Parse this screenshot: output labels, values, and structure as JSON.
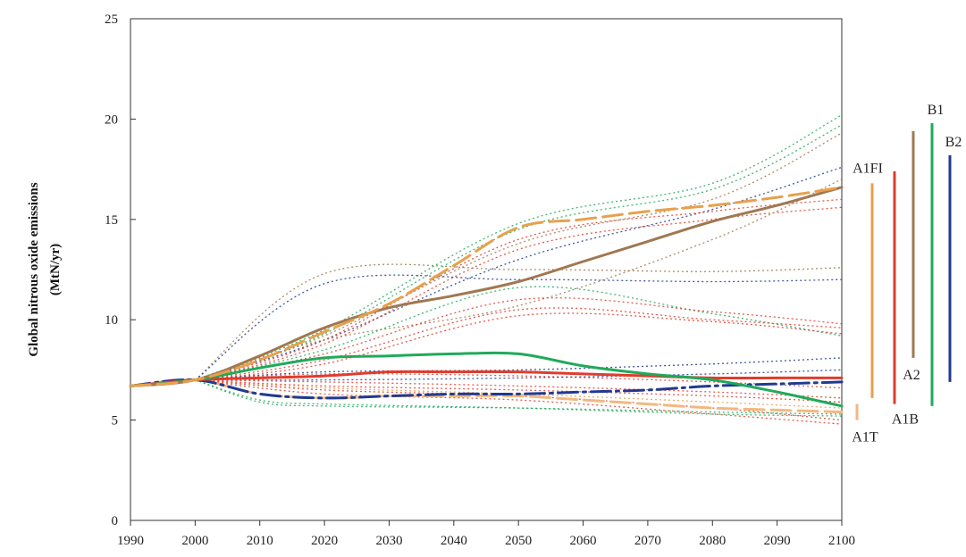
{
  "chart_data": {
    "type": "line",
    "ylabel_line1": "Global nitrous oxide emissions",
    "ylabel_line2": "(MtN/yr)",
    "xlim": [
      1990,
      2100
    ],
    "ylim": [
      0,
      25
    ],
    "x_ticks": [
      "1990",
      "2000",
      "2010",
      "2020",
      "2030",
      "2040",
      "2050",
      "2060",
      "2070",
      "2080",
      "2090",
      "2100"
    ],
    "y_ticks": [
      "0",
      "5",
      "10",
      "15",
      "20",
      "25"
    ],
    "grid": false,
    "colors": {
      "A1FI": "#e8a04c",
      "A1B": "#e03c2c",
      "A1T": "#f2b880",
      "A2": "#a07850",
      "B1": "#1faa5a",
      "B2": "#1f3a93"
    },
    "series": [
      {
        "name": "A1FI",
        "style": "dashed-bold",
        "x": [
          1990,
          2000,
          2010,
          2020,
          2030,
          2040,
          2050,
          2060,
          2070,
          2080,
          2090,
          2100
        ],
        "values": [
          6.7,
          7.0,
          8.0,
          9.4,
          10.8,
          12.7,
          14.6,
          15.0,
          15.4,
          15.7,
          16.1,
          16.6
        ]
      },
      {
        "name": "A1B",
        "style": "solid-bold",
        "x": [
          1990,
          2000,
          2010,
          2020,
          2030,
          2040,
          2050,
          2060,
          2070,
          2080,
          2090,
          2100
        ],
        "values": [
          6.7,
          7.0,
          7.1,
          7.2,
          7.4,
          7.4,
          7.4,
          7.3,
          7.2,
          7.1,
          7.1,
          7.1
        ]
      },
      {
        "name": "A1T",
        "style": "dashed-bold",
        "x": [
          1990,
          2000,
          2010,
          2020,
          2030,
          2040,
          2050,
          2060,
          2070,
          2080,
          2090,
          2100
        ],
        "values": [
          6.7,
          7.0,
          6.3,
          6.1,
          6.2,
          6.2,
          6.2,
          6.0,
          5.8,
          5.6,
          5.5,
          5.4
        ]
      },
      {
        "name": "A2",
        "style": "solid-bold",
        "x": [
          1990,
          2000,
          2010,
          2020,
          2030,
          2040,
          2050,
          2060,
          2070,
          2080,
          2090,
          2100
        ],
        "values": [
          6.7,
          7.0,
          8.2,
          9.6,
          10.6,
          11.2,
          11.9,
          12.9,
          13.9,
          14.9,
          15.7,
          16.6
        ]
      },
      {
        "name": "B1",
        "style": "solid-bold",
        "x": [
          1990,
          2000,
          2010,
          2020,
          2030,
          2040,
          2050,
          2060,
          2070,
          2080,
          2090,
          2100
        ],
        "values": [
          6.7,
          7.0,
          7.6,
          8.1,
          8.2,
          8.3,
          8.3,
          7.7,
          7.3,
          7.0,
          6.4,
          5.7
        ]
      },
      {
        "name": "B2",
        "style": "dash-dot-bold",
        "x": [
          1990,
          2000,
          2010,
          2020,
          2030,
          2040,
          2050,
          2060,
          2070,
          2080,
          2090,
          2100
        ],
        "values": [
          6.7,
          7.0,
          6.3,
          6.1,
          6.2,
          6.3,
          6.3,
          6.4,
          6.5,
          6.7,
          6.8,
          6.9
        ]
      }
    ],
    "other_scenarios": [
      {
        "color": "#1faa5a",
        "x": [
          2000,
          2020,
          2050,
          2080,
          2100
        ],
        "values": [
          7.0,
          9.5,
          14.8,
          16.8,
          20.2
        ]
      },
      {
        "color": "#1faa5a",
        "x": [
          2000,
          2020,
          2050,
          2080,
          2100
        ],
        "values": [
          7.0,
          9.3,
          14.5,
          16.5,
          19.7
        ]
      },
      {
        "color": "#a07850",
        "x": [
          2000,
          2020,
          2050,
          2080,
          2100
        ],
        "values": [
          7.0,
          9.2,
          13.8,
          16.0,
          19.3
        ]
      },
      {
        "color": "#1f3a93",
        "x": [
          2000,
          2020,
          2050,
          2080,
          2100
        ],
        "values": [
          7.0,
          9.0,
          13.0,
          15.5,
          17.6
        ]
      },
      {
        "color": "#e03c2c",
        "x": [
          2000,
          2020,
          2050,
          2080,
          2100
        ],
        "values": [
          7.0,
          9.0,
          14.0,
          15.4,
          16.0
        ]
      },
      {
        "color": "#e03c2c",
        "x": [
          2000,
          2020,
          2050,
          2080,
          2100
        ],
        "values": [
          7.0,
          8.8,
          13.5,
          15.0,
          15.6
        ]
      },
      {
        "color": "#a07850",
        "x": [
          2000,
          2020,
          2050,
          2080,
          2100
        ],
        "values": [
          7.0,
          12.3,
          12.5,
          12.4,
          12.6
        ]
      },
      {
        "color": "#1f3a93",
        "x": [
          2000,
          2020,
          2050,
          2080,
          2100
        ],
        "values": [
          7.0,
          11.8,
          12.0,
          11.9,
          12.0
        ]
      },
      {
        "color": "#a07850",
        "x": [
          2000,
          2020,
          2050,
          2080,
          2100
        ],
        "values": [
          7.0,
          9.0,
          10.7,
          14.0,
          17.0
        ]
      },
      {
        "color": "#1faa5a",
        "x": [
          2000,
          2020,
          2050,
          2080,
          2100
        ],
        "values": [
          7.0,
          8.5,
          11.6,
          10.3,
          9.2
        ]
      },
      {
        "color": "#e03c2c",
        "x": [
          2000,
          2020,
          2050,
          2080,
          2100
        ],
        "values": [
          7.0,
          8.0,
          10.5,
          10.0,
          9.6
        ]
      },
      {
        "color": "#e03c2c",
        "x": [
          2000,
          2020,
          2050,
          2080,
          2100
        ],
        "values": [
          7.0,
          8.3,
          11.0,
          10.4,
          9.8
        ]
      },
      {
        "color": "#e03c2c",
        "x": [
          2000,
          2020,
          2050,
          2080,
          2100
        ],
        "values": [
          7.0,
          7.8,
          10.2,
          9.9,
          9.3
        ]
      },
      {
        "color": "#1f3a93",
        "x": [
          2000,
          2020,
          2050,
          2080,
          2100
        ],
        "values": [
          7.0,
          7.4,
          7.5,
          7.8,
          8.1
        ]
      },
      {
        "color": "#e03c2c",
        "x": [
          2000,
          2020,
          2050,
          2080,
          2100
        ],
        "values": [
          7.0,
          7.3,
          7.2,
          6.9,
          6.6
        ]
      },
      {
        "color": "#1f3a93",
        "x": [
          2000,
          2020,
          2050,
          2080,
          2100
        ],
        "values": [
          7.0,
          7.0,
          7.1,
          7.3,
          7.5
        ]
      },
      {
        "color": "#e03c2c",
        "x": [
          2000,
          2020,
          2050,
          2080,
          2100
        ],
        "values": [
          7.0,
          6.9,
          6.7,
          6.4,
          6.1
        ]
      },
      {
        "color": "#e8a04c",
        "x": [
          2000,
          2020,
          2050,
          2080,
          2100
        ],
        "values": [
          7.0,
          6.6,
          6.3,
          5.9,
          5.6
        ]
      },
      {
        "color": "#e03c2c",
        "x": [
          2000,
          2020,
          2050,
          2080,
          2100
        ],
        "values": [
          7.0,
          6.5,
          6.2,
          5.6,
          5.0
        ]
      },
      {
        "color": "#1faa5a",
        "x": [
          2000,
          2010,
          2020,
          2050,
          2080,
          2100
        ],
        "values": [
          7.0,
          5.9,
          5.7,
          5.6,
          5.4,
          5.3
        ]
      },
      {
        "color": "#1faa5a",
        "x": [
          2000,
          2010,
          2020,
          2050,
          2080,
          2100
        ],
        "values": [
          7.0,
          6.0,
          5.8,
          5.6,
          5.3,
          5.2
        ]
      },
      {
        "color": "#e03c2c",
        "x": [
          2000,
          2020,
          2050,
          2080,
          2100
        ],
        "values": [
          7.0,
          6.3,
          6.0,
          5.3,
          4.8
        ]
      },
      {
        "color": "#e03c2c",
        "x": [
          2000,
          2020,
          2050,
          2080,
          2100
        ],
        "values": [
          7.0,
          6.7,
          6.5,
          6.2,
          5.9
        ]
      }
    ],
    "ranges": [
      {
        "name": "A1FI",
        "low": 6.1,
        "high": 16.8
      },
      {
        "name": "A1B",
        "low": 5.8,
        "high": 17.4
      },
      {
        "name": "A1T",
        "low": 5.0,
        "high": 5.8
      },
      {
        "name": "A2",
        "low": 8.1,
        "high": 19.4
      },
      {
        "name": "B1",
        "low": 5.7,
        "high": 19.8
      },
      {
        "name": "B2",
        "low": 6.9,
        "high": 18.2
      }
    ]
  }
}
